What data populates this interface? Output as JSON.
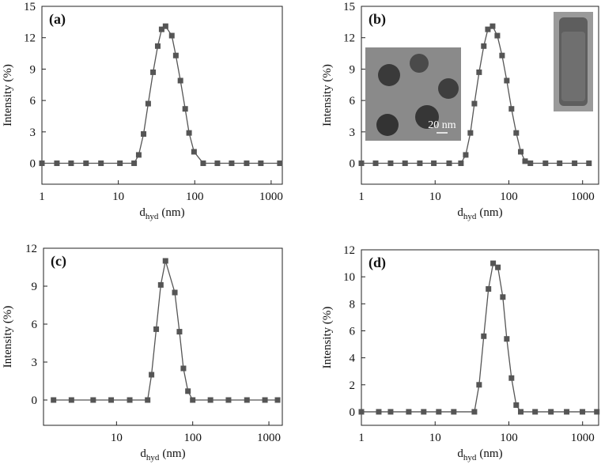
{
  "chart_data": [
    {
      "type": "line",
      "label": "(a)",
      "ylabel": "Intensity (%)",
      "xlabel": {
        "text": "d",
        "subscript": "hyd",
        "unit": "(nm)"
      },
      "xscale": "log",
      "xlim": [
        1,
        1400
      ],
      "xticks": [
        1,
        10,
        100,
        1000
      ],
      "ylim": [
        -2,
        15
      ],
      "yticks": [
        0,
        3,
        6,
        9,
        12,
        15
      ],
      "color": "#555555",
      "x": [
        1,
        1.57,
        2.41,
        3.78,
        5.93,
        10.5,
        16.1,
        18.5,
        21.4,
        24.6,
        28.5,
        32.8,
        36.9,
        41.5,
        50.1,
        56.6,
        65,
        75,
        84.3,
        97.9,
        129,
        198,
        304,
        478,
        733,
        1300
      ],
      "values": [
        0,
        0,
        0,
        0,
        0,
        0,
        0,
        0.8,
        2.8,
        5.7,
        8.7,
        11.2,
        12.8,
        13.1,
        12.2,
        10.3,
        7.9,
        5.2,
        2.9,
        1.1,
        0,
        0,
        0,
        0,
        0,
        0
      ]
    },
    {
      "type": "line",
      "label": "(b)",
      "ylabel": "Intensity (%)",
      "xlabel": {
        "text": "d",
        "subscript": "hyd",
        "unit": "(nm)"
      },
      "annotation": "20 nm",
      "xscale": "log",
      "xlim": [
        1,
        1650
      ],
      "xticks": [
        1,
        10,
        100,
        1000
      ],
      "ylim": [
        -2,
        15
      ],
      "yticks": [
        0,
        3,
        6,
        9,
        12,
        15
      ],
      "color": "#555555",
      "x": [
        1,
        1.56,
        2.49,
        3.91,
        6.2,
        9.6,
        15.5,
        22.4,
        26,
        30.1,
        34.1,
        39.5,
        45.7,
        51.9,
        60.2,
        69.8,
        80.9,
        93.7,
        108.6,
        125.9,
        145,
        166,
        196,
        314,
        488,
        779,
        1220
      ],
      "values": [
        0,
        0,
        0,
        0,
        0,
        0,
        0,
        0,
        0.8,
        2.9,
        5.7,
        8.7,
        11.2,
        12.8,
        13.1,
        12.2,
        10.3,
        7.9,
        5.2,
        2.9,
        1.1,
        0.2,
        0,
        0,
        0,
        0,
        0
      ]
    },
    {
      "type": "line",
      "label": "(c)",
      "ylabel": "Intensity (%)",
      "xlabel": {
        "text": "d",
        "subscript": "hyd",
        "unit": "(nm)"
      },
      "xscale": "log",
      "xlim": [
        1.1,
        1500
      ],
      "xticks": [
        10,
        100,
        1000
      ],
      "ylim": [
        -2,
        12
      ],
      "yticks": [
        0,
        3,
        6,
        9,
        12
      ],
      "color": "#555555",
      "x": [
        1.49,
        2.56,
        4.94,
        8.5,
        14.9,
        25.6,
        28.8,
        33.2,
        38.1,
        43.9,
        58.2,
        67,
        75.5,
        86.6,
        100,
        171,
        295,
        515,
        888,
        1300
      ],
      "values": [
        0,
        0,
        0,
        0,
        0,
        0,
        2.0,
        5.6,
        9.1,
        11.0,
        8.5,
        5.4,
        2.5,
        0.7,
        0,
        0,
        0,
        0,
        0,
        0
      ]
    },
    {
      "type": "line",
      "label": "(d)",
      "ylabel": "Intensity (%)",
      "xlabel": {
        "text": "d",
        "subscript": "hyd",
        "unit": "(nm)"
      },
      "xscale": "log",
      "xlim": [
        1,
        1650
      ],
      "xticks": [
        1,
        10,
        100,
        1000
      ],
      "ylim": [
        -1,
        12
      ],
      "yticks": [
        0,
        2,
        4,
        6,
        8,
        10,
        12
      ],
      "color": "#555555",
      "x": [
        1,
        1.72,
        2.49,
        4.39,
        7,
        11.2,
        17.9,
        34.1,
        39.5,
        45.7,
        52.9,
        61.2,
        71,
        82.8,
        93.7,
        108.6,
        125.9,
        145,
        227,
        372,
        608,
        996,
        1560
      ],
      "values": [
        0,
        0,
        0,
        0,
        0,
        0,
        0,
        0,
        2.0,
        5.6,
        9.1,
        11.0,
        10.7,
        8.5,
        5.4,
        2.5,
        0.5,
        0,
        0,
        0,
        0,
        0,
        0
      ]
    }
  ]
}
